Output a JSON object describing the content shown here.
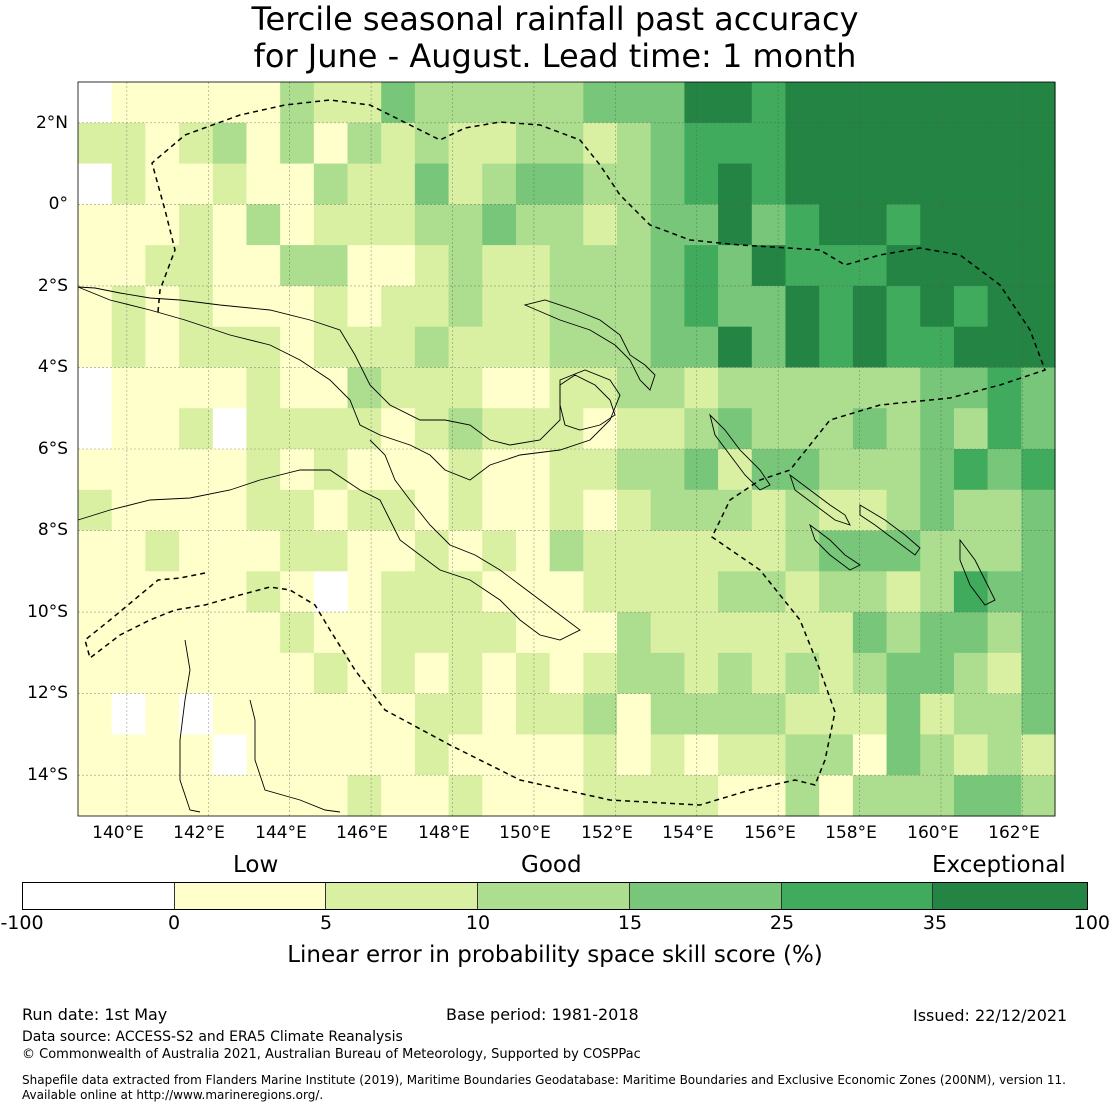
{
  "title": {
    "line1": "Tercile seasonal rainfall past accuracy",
    "line2": "for June - August. Lead time: 1 month"
  },
  "map": {
    "lat_labels": [
      "2°N",
      "0°",
      "2°S",
      "4°S",
      "6°S",
      "8°S",
      "10°S",
      "12°S",
      "14°S"
    ],
    "lon_labels": [
      "140°E",
      "142°E",
      "144°E",
      "146°E",
      "148°E",
      "150°E",
      "152°E",
      "154°E",
      "156°E",
      "158°E",
      "160°E",
      "162°E"
    ],
    "grid_extent": {
      "lon_min": 138.8,
      "lon_max": 162.8,
      "lat_min": -15.0,
      "lat_max": 3.0
    }
  },
  "legend": {
    "categories": [
      "Low",
      "Good",
      "Exceptional"
    ],
    "ticks": [
      "-100",
      "0",
      "5",
      "10",
      "15",
      "25",
      "35",
      "100"
    ],
    "colors": [
      "#ffffff",
      "#ffffcc",
      "#d9f0a3",
      "#addd8e",
      "#78c679",
      "#41ab5d",
      "#238443"
    ],
    "label": "Linear error in probability space skill score (%)"
  },
  "footer": {
    "run_date": "Run date: 1st May",
    "base_period": "Base period: 1981-2018",
    "issued": "Issued: 22/12/2021",
    "data_source": "Data source: ACCESS-S2 and ERA5 Climate Reanalysis",
    "copyright": "© Commonwealth of Australia 2021, Australian Bureau of Meteorology, Supported by COSPPac",
    "shapefile_line1": "Shapefile data extracted from Flanders Marine Institute (2019), Maritime Boundaries Geodatabase: Maritime Boundaries and Exclusive Economic Zones (200NM), version 11.",
    "shapefile_line2": "Available online at http://www.marineregions.org/."
  }
}
